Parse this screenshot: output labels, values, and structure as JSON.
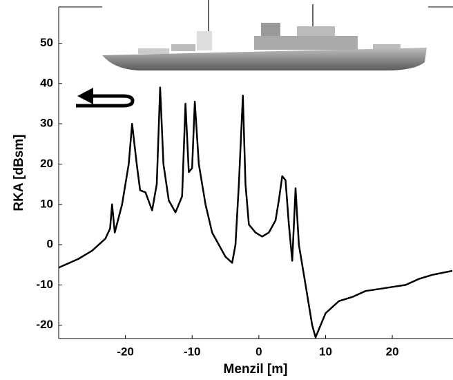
{
  "chart_data": {
    "type": "line",
    "xlabel": "Menzil [m]",
    "ylabel": "RKA [dBsm]",
    "x": [
      -30,
      -27,
      -25,
      -23,
      -22.3,
      -22,
      -21.6,
      -20.5,
      -19.5,
      -19,
      -18.3,
      -17.8,
      -17,
      -16,
      -15.3,
      -14.8,
      -14.3,
      -13.5,
      -12.5,
      -11.5,
      -11,
      -10.5,
      -10,
      -9.6,
      -9,
      -8,
      -7,
      -5,
      -4,
      -3.5,
      -3,
      -2.4,
      -2,
      -1.5,
      -0.5,
      0.5,
      1.5,
      2.5,
      3,
      3.5,
      4,
      4.5,
      5,
      5.5,
      6,
      7,
      8,
      8.5,
      9,
      10,
      12,
      14,
      16,
      18,
      20,
      22,
      24,
      26,
      29
    ],
    "values": [
      -5.7,
      -3.5,
      -1.5,
      1.5,
      4,
      10,
      3,
      10,
      20,
      30,
      20,
      13.5,
      13,
      8.5,
      15,
      39,
      20,
      11,
      8,
      12,
      35,
      18,
      19,
      35.5,
      20,
      10,
      3,
      -3,
      -4.5,
      0,
      15,
      37,
      15,
      5,
      3,
      2,
      3,
      6,
      11,
      17,
      16,
      5,
      -4,
      14,
      0,
      -10,
      -20,
      -23,
      -21,
      -17,
      -14,
      -13,
      -11.5,
      -11,
      -10.5,
      -10,
      -8.5,
      -7.5,
      -6.5
    ],
    "color": "#000000",
    "xlim": [
      -30,
      29.1
    ],
    "ylim": [
      -23.3,
      59
    ],
    "xticks": [
      -20,
      -10,
      0,
      10,
      20
    ],
    "yticks": [
      -20,
      -10,
      0,
      10,
      20,
      30,
      40,
      50
    ]
  }
}
